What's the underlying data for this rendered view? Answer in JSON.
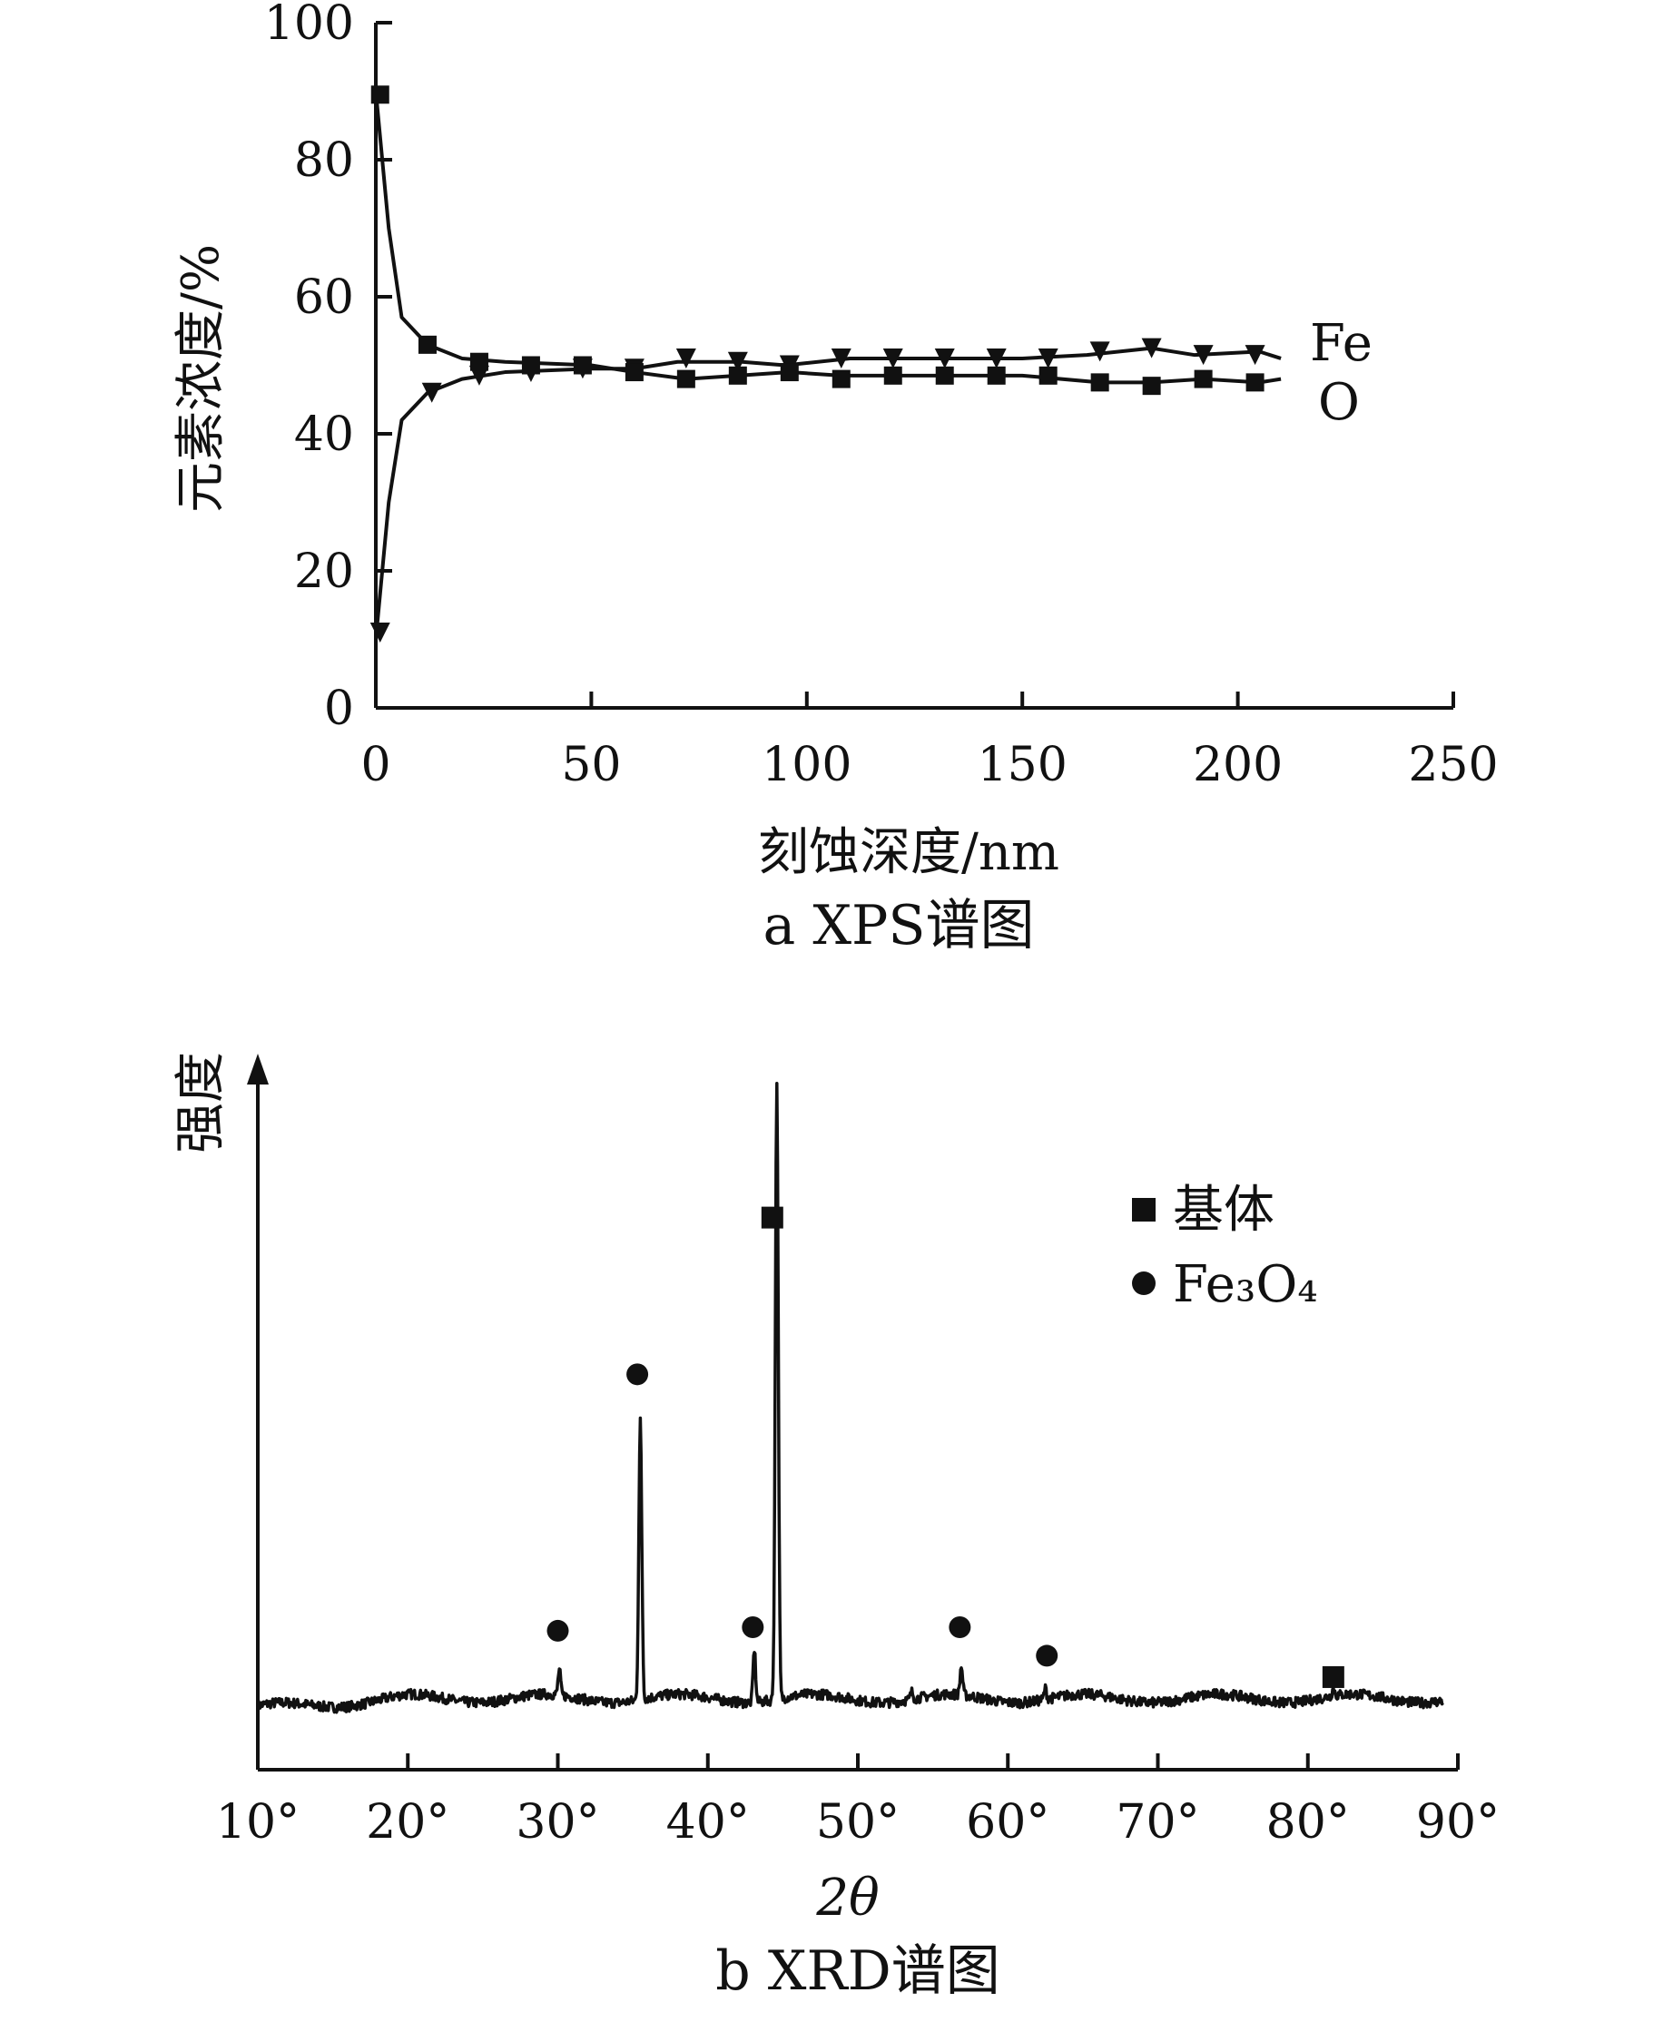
{
  "chart_data": [
    {
      "type": "line",
      "caption": "a  XPS谱图",
      "xlabel": "刻蚀深度/nm",
      "ylabel": "元素浓度/%",
      "xlim": [
        0,
        250
      ],
      "ylim": [
        0,
        100
      ],
      "xticks": [
        "0",
        "50",
        "100",
        "150",
        "200",
        "250"
      ],
      "yticks": [
        "0",
        "20",
        "40",
        "60",
        "80",
        "100"
      ],
      "grid": false,
      "legend": "inline-right",
      "series": [
        {
          "name": "Fe",
          "marker": "triangle-down",
          "color": "#111111",
          "points": [
            [
              1,
              11
            ],
            [
              13,
              46
            ],
            [
              24,
              48.5
            ],
            [
              36,
              49
            ],
            [
              48,
              49.5
            ],
            [
              60,
              49.5
            ],
            [
              72,
              51
            ],
            [
              84,
              50.5
            ],
            [
              96,
              50
            ],
            [
              108,
              51
            ],
            [
              120,
              51
            ],
            [
              132,
              51
            ],
            [
              144,
              51
            ],
            [
              156,
              51
            ],
            [
              168,
              52
            ],
            [
              180,
              52.5
            ],
            [
              192,
              51.5
            ],
            [
              204,
              51.5
            ]
          ],
          "curve": [
            [
              0,
              10
            ],
            [
              3,
              30
            ],
            [
              6,
              42
            ],
            [
              12,
              46
            ],
            [
              20,
              48
            ],
            [
              30,
              49
            ],
            [
              50,
              49.5
            ],
            [
              60,
              49.5
            ],
            [
              70,
              50.5
            ],
            [
              85,
              50.5
            ],
            [
              95,
              50
            ],
            [
              110,
              51
            ],
            [
              150,
              51
            ],
            [
              165,
              51.5
            ],
            [
              180,
              52.5
            ],
            [
              190,
              51.5
            ],
            [
              205,
              52
            ],
            [
              210,
              51
            ]
          ]
        },
        {
          "name": "O",
          "marker": "square",
          "color": "#111111",
          "points": [
            [
              1,
              89.5
            ],
            [
              12,
              53
            ],
            [
              24,
              50.5
            ],
            [
              36,
              50
            ],
            [
              48,
              50
            ],
            [
              60,
              49
            ],
            [
              72,
              48
            ],
            [
              84,
              48.5
            ],
            [
              96,
              49
            ],
            [
              108,
              48
            ],
            [
              120,
              48.5
            ],
            [
              132,
              48.5
            ],
            [
              144,
              48.5
            ],
            [
              156,
              48.5
            ],
            [
              168,
              47.5
            ],
            [
              180,
              47
            ],
            [
              192,
              48
            ],
            [
              204,
              47.5
            ]
          ],
          "curve": [
            [
              0,
              90
            ],
            [
              3,
              70
            ],
            [
              6,
              57
            ],
            [
              12,
              53
            ],
            [
              20,
              51
            ],
            [
              30,
              50.5
            ],
            [
              50,
              50
            ],
            [
              60,
              49
            ],
            [
              72,
              48
            ],
            [
              84,
              48.5
            ],
            [
              96,
              49
            ],
            [
              108,
              48.5
            ],
            [
              150,
              48.5
            ],
            [
              168,
              47.5
            ],
            [
              180,
              47.5
            ],
            [
              192,
              48
            ],
            [
              205,
              47.5
            ],
            [
              210,
              48
            ]
          ]
        }
      ]
    },
    {
      "type": "line",
      "caption": "b  XRD谱图",
      "xlabel": "2θ",
      "ylabel": "强度",
      "xlim": [
        10,
        90
      ],
      "ylim": [
        0,
        100
      ],
      "xticks": [
        "10°",
        "20°",
        "30°",
        "40°",
        "50°",
        "60°",
        "70°",
        "80°",
        "90°"
      ],
      "legend": "upper-right",
      "legend_entries": [
        {
          "marker": "square",
          "label": "基体"
        },
        {
          "marker": "circle",
          "label": "Fe₃O₄"
        }
      ],
      "baseline": 10,
      "peaks": [
        {
          "two_theta": 30.1,
          "height": 13.5,
          "phase": "Fe₃O₄"
        },
        {
          "two_theta": 35.5,
          "height": 49,
          "phase": "Fe₃O₄"
        },
        {
          "two_theta": 43.1,
          "height": 17.5,
          "phase": "Fe₃O₄"
        },
        {
          "two_theta": 44.6,
          "height": 96,
          "phase": "基体"
        },
        {
          "two_theta": 56.9,
          "height": 14,
          "phase": "Fe₃O₄"
        },
        {
          "two_theta": 62.5,
          "height": 11.5,
          "phase": "Fe₃O₄"
        },
        {
          "two_theta": 53.6,
          "height": 11,
          "phase": ""
        },
        {
          "two_theta": 81.7,
          "height": 11,
          "phase": "基体"
        }
      ],
      "phase_markers": [
        {
          "two_theta": 30.0,
          "intensity": 19.5,
          "marker": "circle"
        },
        {
          "two_theta": 35.3,
          "intensity": 55.5,
          "marker": "circle"
        },
        {
          "two_theta": 43.0,
          "intensity": 20.0,
          "marker": "circle"
        },
        {
          "two_theta": 44.3,
          "intensity": 77.5,
          "marker": "square"
        },
        {
          "two_theta": 56.8,
          "intensity": 20.0,
          "marker": "circle"
        },
        {
          "two_theta": 62.6,
          "intensity": 16.0,
          "marker": "circle"
        },
        {
          "two_theta": 81.7,
          "intensity": 13.0,
          "marker": "square"
        }
      ]
    }
  ]
}
